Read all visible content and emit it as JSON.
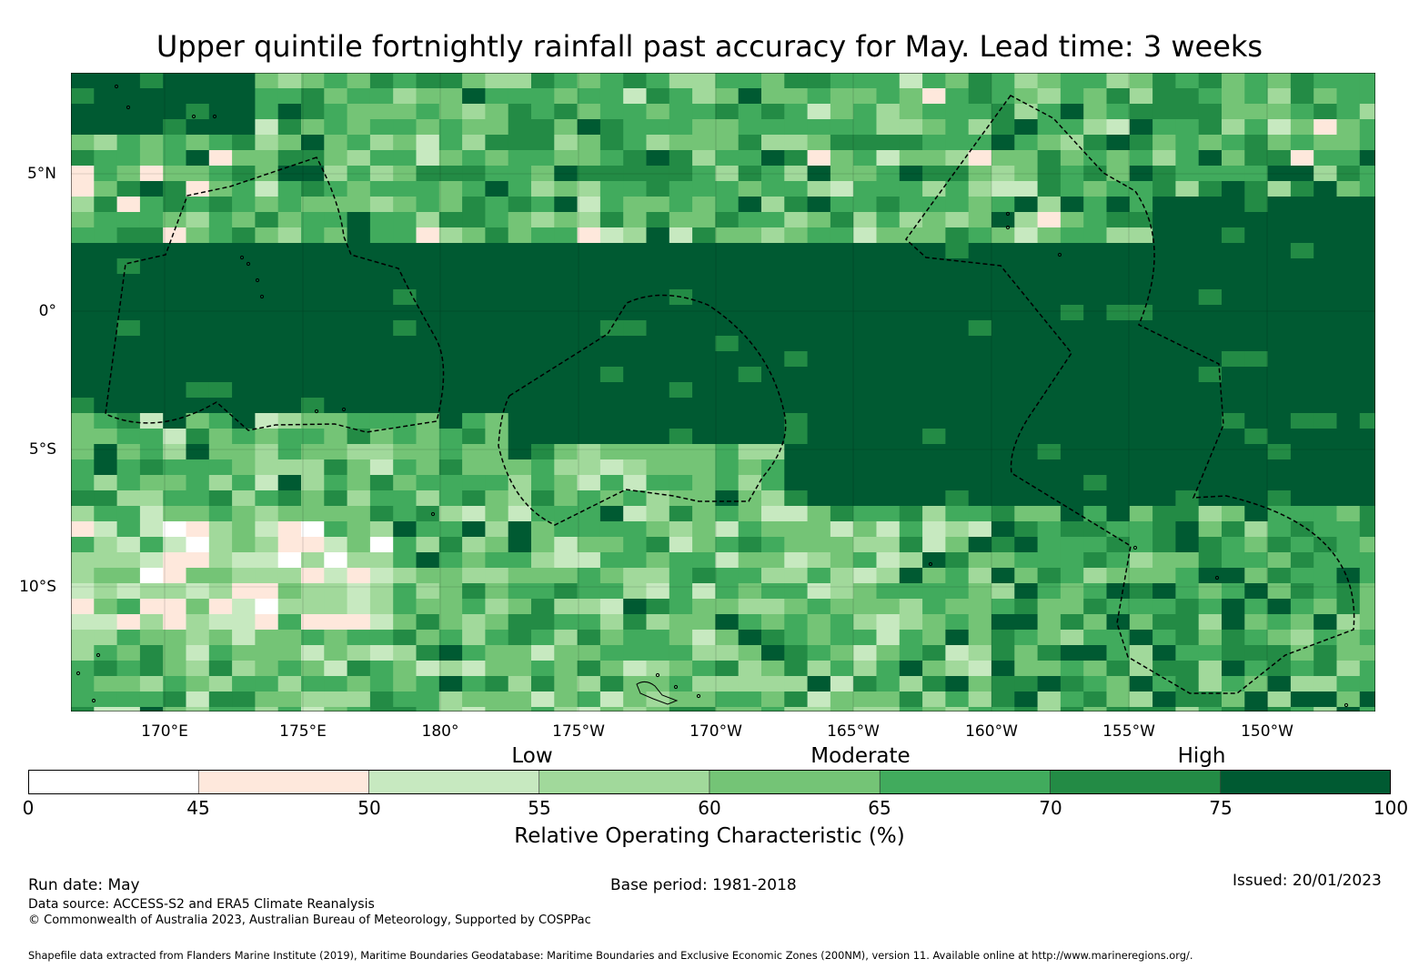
{
  "title": "Upper quintile fortnightly rainfall past accuracy for May. Lead time: 3 weeks",
  "map": {
    "lon_ticks": [
      "170°E",
      "175°E",
      "180°",
      "175°W",
      "170°W",
      "165°W",
      "160°W",
      "155°W",
      "150°W"
    ],
    "lat_ticks": [
      "5°N",
      "0°",
      "5°S",
      "10°S"
    ],
    "colors": {
      "c0": "#ffffff",
      "c1": "#fee8dc",
      "c2": "#c7e9c0",
      "c3": "#a1d99b",
      "c4": "#74c476",
      "c5": "#41ab5d",
      "c6": "#238b45",
      "c7": "#005a32"
    }
  },
  "legend": {
    "categories": [
      "Low",
      "Moderate",
      "High"
    ],
    "bins": [
      {
        "from": 0,
        "to": 45,
        "color": "#ffffff"
      },
      {
        "from": 45,
        "to": 50,
        "color": "#fee8dc"
      },
      {
        "from": 50,
        "to": 55,
        "color": "#c7e9c0"
      },
      {
        "from": 55,
        "to": 60,
        "color": "#a1d99b"
      },
      {
        "from": 60,
        "to": 65,
        "color": "#74c476"
      },
      {
        "from": 65,
        "to": 70,
        "color": "#41ab5d"
      },
      {
        "from": 70,
        "to": 75,
        "color": "#238b45"
      },
      {
        "from": 75,
        "to": 100,
        "color": "#005a32"
      }
    ],
    "ticks": [
      "0",
      "45",
      "50",
      "55",
      "60",
      "65",
      "70",
      "75",
      "100"
    ],
    "label": "Relative Operating Characteristic (%)"
  },
  "footer": {
    "run_date": "Run date: May",
    "base_period": "Base period: 1981-2018",
    "issued": "Issued: 20/01/2023",
    "data_source": "Data source: ACCESS-S2 and ERA5 Climate Reanalysis",
    "copyright": "© Commonwealth of Australia 2023, Australian Bureau of Meteorology, Supported by COSPPac",
    "shapefile": "Shapefile data extracted from Flanders Marine Institute (2019), Maritime Boundaries Geodatabase: Maritime Boundaries and Exclusive Economic Zones (200NM), version 11. Available online at http://www.marineregions.org/."
  }
}
